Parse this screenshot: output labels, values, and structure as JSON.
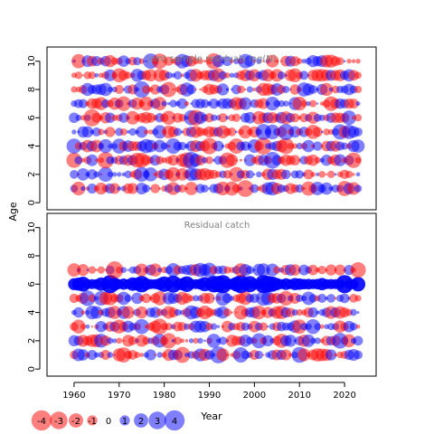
{
  "chart_data": [
    {
      "type": "scatter",
      "subtype": "bubble-residuals",
      "title": "Joint sample residuals log(N)",
      "xlabel": "",
      "ylabel": "Age",
      "xlim": [
        1954,
        2027
      ],
      "ylim": [
        -0.5,
        11
      ],
      "yticks": [
        0,
        2,
        4,
        6,
        8,
        10
      ],
      "years_range": [
        1960,
        2023
      ],
      "ages": [
        1,
        2,
        3,
        4,
        5,
        6,
        7,
        8,
        9,
        10
      ],
      "seed": 7,
      "sign_bias": 0,
      "size_scale": 1.0
    },
    {
      "type": "scatter",
      "subtype": "bubble-residuals",
      "title": "Residual catch",
      "xlabel": "Year",
      "ylabel": "",
      "xlim": [
        1954,
        2027
      ],
      "ylim": [
        -0.5,
        11
      ],
      "yticks": [
        0,
        2,
        4,
        6,
        8,
        10
      ],
      "xticks": [
        1960,
        1970,
        1980,
        1990,
        2000,
        2010,
        2020
      ],
      "years_range": [
        1960,
        2023
      ],
      "ages": [
        1,
        2,
        3,
        4,
        5,
        6,
        7
      ],
      "seed": 23,
      "sign_bias": 0,
      "size_scale": 1.0,
      "highlight_row": 6
    }
  ],
  "legend": {
    "values": [
      -4,
      -3,
      -2,
      -1,
      0,
      1,
      2,
      3,
      4
    ],
    "labels": [
      "-4",
      "-3",
      "-2",
      "-1",
      "0",
      "1",
      "2",
      "3",
      "4"
    ]
  },
  "colors": {
    "negative": "#ff0000",
    "positive": "#0000ff"
  },
  "axis_titles": {
    "y": "Age",
    "x": "Year"
  }
}
